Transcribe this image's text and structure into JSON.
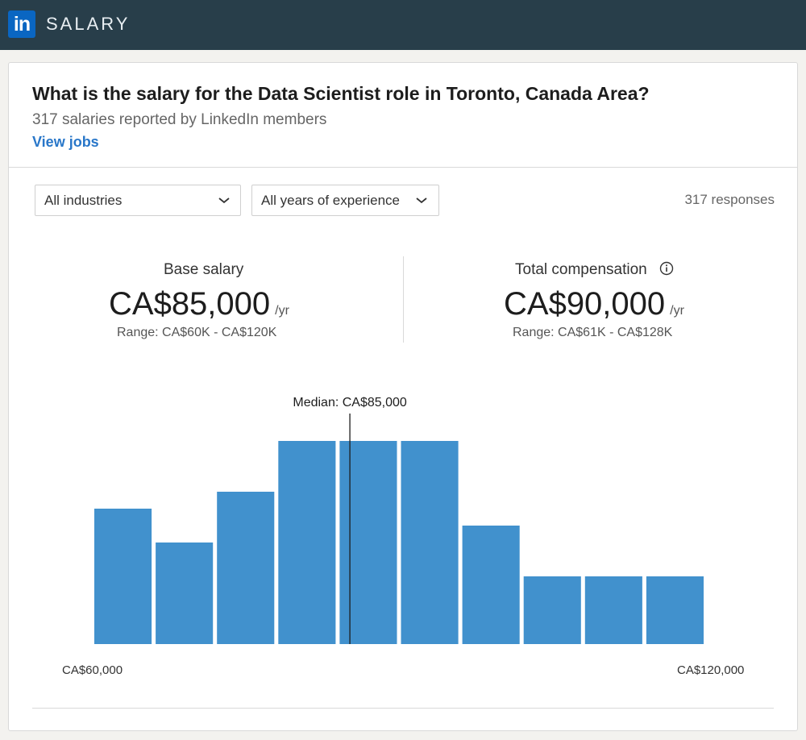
{
  "header": {
    "logo_text": "in",
    "product": "SALARY"
  },
  "summary": {
    "title": "What is the salary for the Data Scientist role in Toronto, Canada Area?",
    "subtitle": "317 salaries reported by LinkedIn members",
    "view_jobs": "View jobs"
  },
  "filters": {
    "industry": "All industries",
    "experience": "All years of experience",
    "responses": "317 responses"
  },
  "base_salary": {
    "label": "Base salary",
    "value": "CA$85,000",
    "unit": "/yr",
    "range": "Range: CA$60K - CA$120K"
  },
  "total_comp": {
    "label": "Total compensation",
    "value": "CA$90,000",
    "unit": "/yr",
    "range": "Range: CA$61K - CA$128K"
  },
  "colors": {
    "bar": "#4191cd",
    "topbar": "#283e4a",
    "link": "#2977c9"
  },
  "chart_data": {
    "type": "bar",
    "title": "",
    "xlabel": "",
    "ylabel": "",
    "categories": [
      "",
      "",
      "",
      "",
      "",
      "",
      "",
      "",
      "",
      ""
    ],
    "values": [
      40,
      30,
      45,
      60,
      60,
      60,
      35,
      20,
      20,
      20
    ],
    "ylim": [
      0,
      60
    ],
    "x_min_label": "CA$60,000",
    "x_max_label": "CA$120,000",
    "median": 85000,
    "median_label": "Median: CA$85,000",
    "x_range": [
      60000,
      120000
    ]
  }
}
